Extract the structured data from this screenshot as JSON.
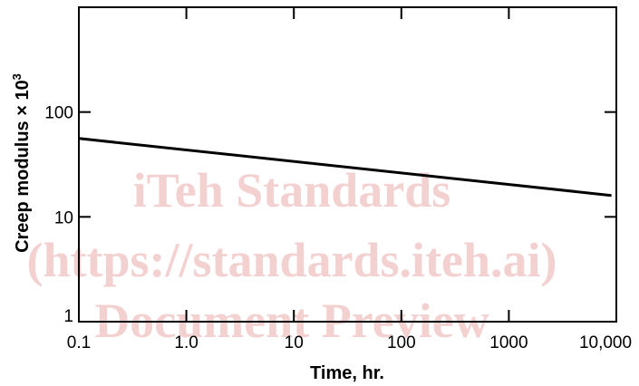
{
  "watermark": {
    "line1": "iTeh Standards",
    "line2": "(https://standards.iteh.ai)",
    "line3": "Document Preview"
  },
  "chart_data": {
    "type": "line",
    "title": "",
    "xlabel": "Time, hr.",
    "ylabel": "Creep modulus × 10",
    "ylabel_superscript": "3",
    "x_scale": "log",
    "y_scale": "log",
    "xlim": [
      0.1,
      10000
    ],
    "ylim": [
      1,
      1000
    ],
    "x_ticks": [
      {
        "value": 0.1,
        "label": "0.1"
      },
      {
        "value": 1,
        "label": "1.0"
      },
      {
        "value": 10,
        "label": "10"
      },
      {
        "value": 100,
        "label": "100"
      },
      {
        "value": 1000,
        "label": "1000"
      },
      {
        "value": 10000,
        "label": "10,000"
      }
    ],
    "y_ticks": [
      {
        "value": 1,
        "label": "1"
      },
      {
        "value": 10,
        "label": "10"
      },
      {
        "value": 100,
        "label": "100"
      }
    ],
    "grid": false,
    "series": [
      {
        "x": [
          0.1,
          9000
        ],
        "y": [
          56,
          16
        ],
        "color": "#000000"
      }
    ]
  }
}
